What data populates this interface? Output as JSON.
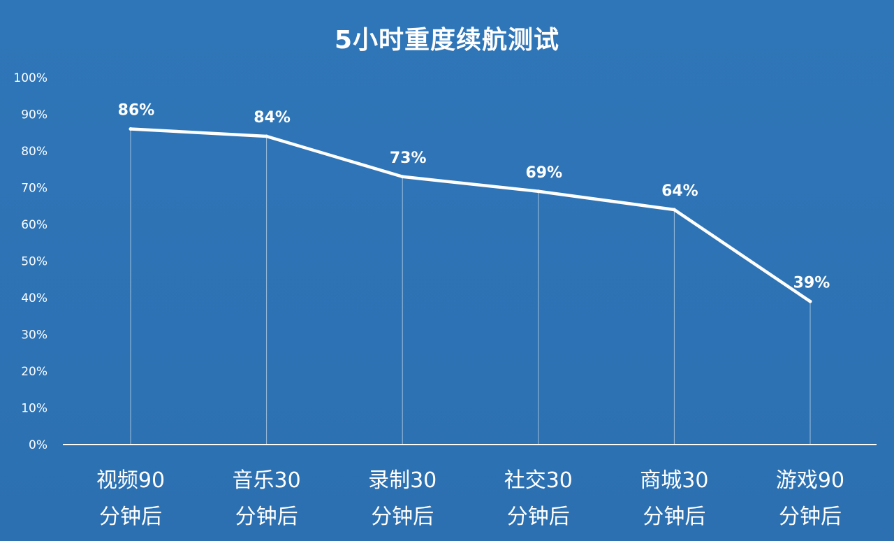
{
  "chart_data": {
    "type": "line",
    "title": "5小时重度续航测试",
    "categories": [
      [
        "视频90",
        "分钟后"
      ],
      [
        "音乐30",
        "分钟后"
      ],
      [
        "录制30",
        "分钟后"
      ],
      [
        "社交30",
        "分钟后"
      ],
      [
        "商城30",
        "分钟后"
      ],
      [
        "游戏90",
        "分钟后"
      ]
    ],
    "values": [
      86,
      84,
      73,
      69,
      64,
      39
    ],
    "data_labels": [
      "86%",
      "84%",
      "73%",
      "69%",
      "64%",
      "39%"
    ],
    "y_ticks": [
      "0%",
      "10%",
      "20%",
      "30%",
      "40%",
      "50%",
      "60%",
      "70%",
      "80%",
      "90%",
      "100%"
    ],
    "ylim": [
      0,
      100
    ],
    "grid": false,
    "legend": "none",
    "line_color": "#ffffff",
    "background_color": "#2e74b5"
  }
}
